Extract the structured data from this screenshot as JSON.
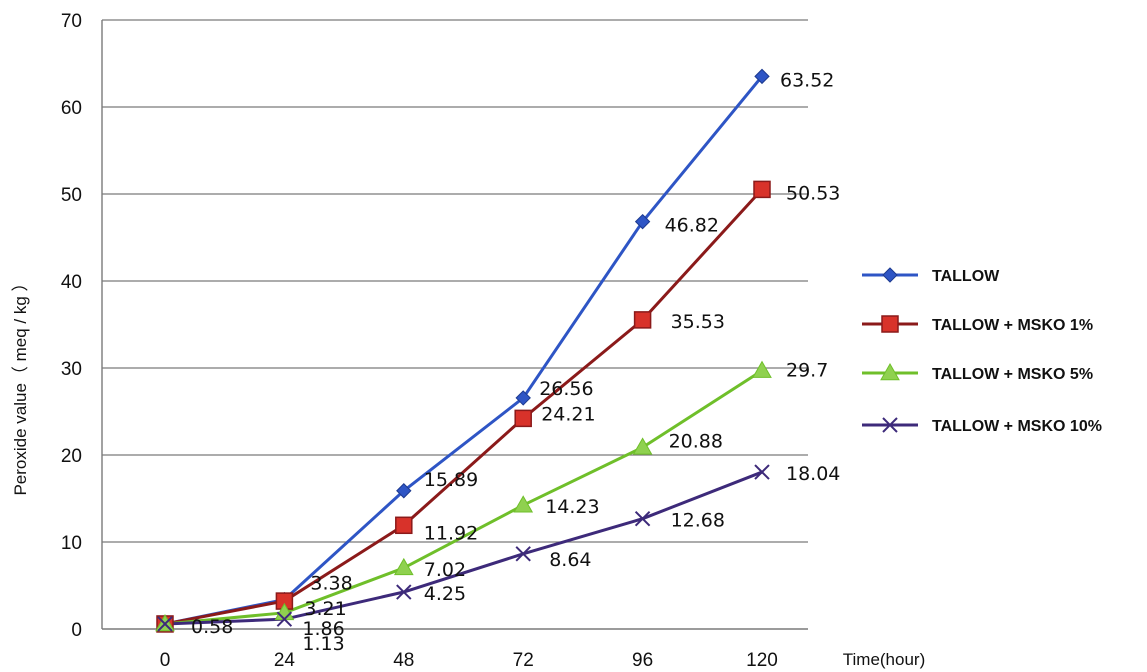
{
  "chart_data": {
    "type": "line",
    "title": "",
    "xlabel": "Time(hour)",
    "ylabel": "Peroxide value（ meq / kg ）",
    "x": [
      0,
      24,
      48,
      72,
      96,
      120
    ],
    "ylim": [
      0,
      70
    ],
    "yticks": [
      0,
      10,
      20,
      30,
      40,
      50,
      60,
      70
    ],
    "grid": "horizontal",
    "legend_position": "right",
    "series": [
      {
        "name": "TALLOW",
        "marker": "diamond",
        "color": "#2e55c5",
        "values": [
          0.58,
          3.38,
          15.89,
          26.56,
          46.82,
          63.52
        ],
        "labels": [
          "0.58",
          "3.38",
          "15.89",
          "26.56",
          "46.82",
          "63.52"
        ]
      },
      {
        "name": "TALLOW + MSKO 1%",
        "marker": "square",
        "color": "#8b1a1a",
        "values": [
          0.58,
          3.21,
          11.92,
          24.21,
          35.53,
          50.53
        ],
        "labels": [
          "",
          "3.21",
          "11.92",
          "24.21",
          "35.53",
          "50.53"
        ]
      },
      {
        "name": "TALLOW + MSKO 5%",
        "marker": "triangle",
        "color": "#6fbf2a",
        "values": [
          0.58,
          1.86,
          7.02,
          14.23,
          20.88,
          29.7
        ],
        "labels": [
          "",
          "1.86",
          "7.02",
          "14.23",
          "20.88",
          "29.7"
        ]
      },
      {
        "name": "TALLOW + MSKO 10%",
        "marker": "x",
        "color": "#3d2a7a",
        "values": [
          0.58,
          1.13,
          4.25,
          8.64,
          12.68,
          18.04
        ],
        "labels": [
          "",
          "1.13",
          "4.25",
          "8.64",
          "12.68",
          "18.04"
        ]
      }
    ]
  }
}
